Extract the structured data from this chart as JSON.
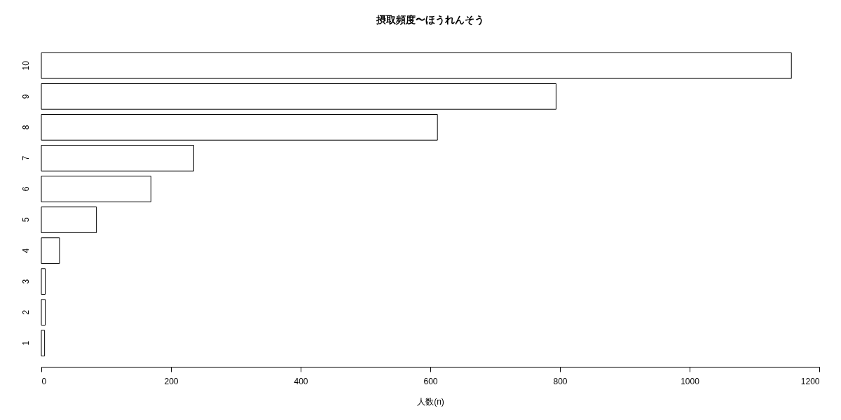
{
  "chart_data": {
    "type": "bar",
    "orientation": "horizontal",
    "title": "摂取頻度〜ほうれんそう",
    "xlabel": "人数(n)",
    "categories": [
      "10",
      "9",
      "8",
      "7",
      "6",
      "5",
      "4",
      "3",
      "2",
      "1"
    ],
    "values": [
      1157,
      794,
      611,
      235,
      169,
      85,
      28,
      6,
      6,
      5
    ],
    "color": "#ffffff",
    "xlim": [
      0,
      1200
    ],
    "xticks": [
      0,
      200,
      400,
      600,
      800,
      1000,
      1200
    ]
  }
}
